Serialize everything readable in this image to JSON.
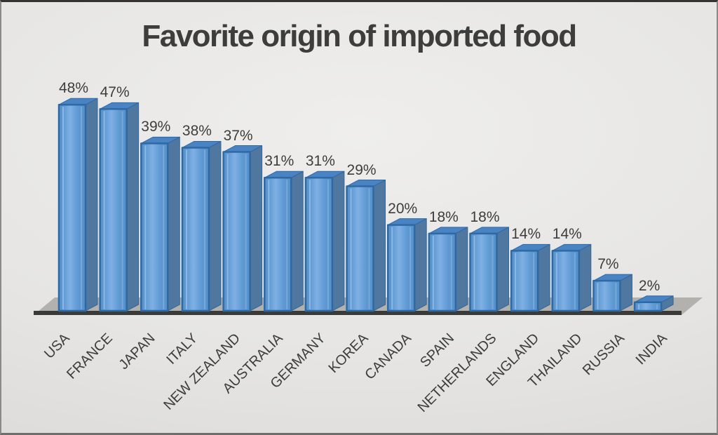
{
  "chart_data": {
    "type": "bar",
    "style": "3d-column",
    "title": "Favorite origin of imported food",
    "categories": [
      "USA",
      "FRANCE",
      "JAPAN",
      "ITALY",
      "NEW ZEALAND",
      "AUSTRALIA",
      "GERMANY",
      "KOREA",
      "CANADA",
      "SPAIN",
      "NETHERLANDS",
      "ENGLAND",
      "THAILAND",
      "RUSSIA",
      "INDIA"
    ],
    "values": [
      48,
      47,
      39,
      38,
      37,
      31,
      31,
      29,
      20,
      18,
      18,
      14,
      14,
      7,
      2
    ],
    "unit": "%",
    "data_labels": true,
    "legend": false,
    "gridlines": false,
    "ylim": [
      0,
      50
    ],
    "xlabel": "",
    "ylabel": "",
    "axes": {
      "y_axis_visible": false,
      "x_axis_labels_rotation_deg": -45
    },
    "colors": {
      "bar_front": "#5e99d3",
      "bar_front_light": "#7fb0e4",
      "bar_front_dark": "#5590cb",
      "bar_border": "#2f69a3",
      "bar_top": "#4a83c3",
      "bar_side": "#4f779f",
      "floor_top": "#b2b1ad",
      "baseline": "#3a3a38",
      "text": "#3d3d3d",
      "background_light": "#efeeec",
      "background_dark": "#d9d8d6"
    }
  }
}
